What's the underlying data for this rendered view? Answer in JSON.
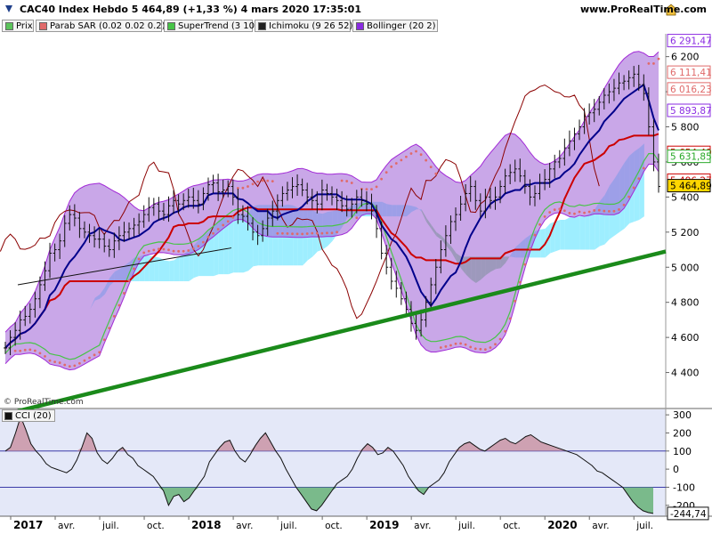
{
  "header": {
    "title": "CAC40 Index Hebdo 5 464,89 (+1,33 %) 4 mars 2020 17:35:01",
    "site": "www.ProRealTime.com"
  },
  "legend": [
    {
      "label": "Prix",
      "color": "#5bc45b"
    },
    {
      "label": "Parab SAR (0.02 0.02 0.2)",
      "color": "#e06a6a"
    },
    {
      "label": "SuperTrend (3 10)",
      "color": "#47c447"
    },
    {
      "label": "Ichimoku (9 26 52)",
      "color": "#202020"
    },
    {
      "label": "Bollinger (20 2)",
      "color": "#8a2be2"
    }
  ],
  "copyright": "© ProRealTime.com",
  "cci_legend": "CCI (20)",
  "colors": {
    "bollinger_fill": "#9c5fd6",
    "bollinger_line": "#a22ad7",
    "kumo_bull": "#7ee8ff",
    "kumo_bear": "#7dd67d",
    "tenkan": "#00008b",
    "kijun": "#cc0000",
    "chikou": "#8b0000",
    "trendline": "#1a8a1a",
    "cci_panel": "#e4e8f8"
  },
  "chart_data": [
    {
      "type": "line",
      "title": "CAC40 Index Hebdo 5 464,89 (+1,33 %) 4 mars 2020 17:35:01",
      "xlabel": "",
      "ylabel": "",
      "x_ticks": [
        "2017",
        "avr.",
        "juil.",
        "oct.",
        "2018",
        "avr.",
        "juil.",
        "oct.",
        "2019",
        "avr.",
        "juil.",
        "oct.",
        "2020",
        "avr.",
        "juil."
      ],
      "y_ticks": [
        "4 400",
        "4 600",
        "4 800",
        "5 000",
        "5 200",
        "5 400",
        "5 600",
        "5 800",
        "6 000",
        "6 200"
      ],
      "ylim": [
        4200,
        6330
      ],
      "price_labels": [
        {
          "text": "6 291,47",
          "value": 6291.47,
          "color": "#8a2be2"
        },
        {
          "text": "6 111,41",
          "value": 6111.41,
          "color": "#e06a6a"
        },
        {
          "text": "6 016,23",
          "value": 6016.23,
          "color": "#e06a6a"
        },
        {
          "text": "5 893,87",
          "value": 5893.87,
          "color": "#8a2be2"
        },
        {
          "text": "5 654,49",
          "value": 5654.49,
          "color": "#cc0000"
        },
        {
          "text": "5 631,85",
          "value": 5631.85,
          "color": "#27a827"
        },
        {
          "text": "5 496,27",
          "value": 5496.27,
          "color": "#cc0000"
        },
        {
          "text": "5 464,89",
          "value": 5464.89,
          "color": "#000000",
          "highlight": "#ffd700"
        }
      ],
      "series": [
        {
          "name": "Prix",
          "values": [
            4540,
            4600,
            4640,
            4700,
            4720,
            4760,
            4820,
            4900,
            4980,
            5080,
            5100,
            5150,
            5250,
            5300,
            5280,
            5220,
            5200,
            5180,
            5160,
            5160,
            5120,
            5100,
            5150,
            5180,
            5200,
            5220,
            5240,
            5260,
            5300,
            5340,
            5360,
            5320,
            5300,
            5350,
            5380,
            5360,
            5380,
            5400,
            5380,
            5360,
            5420,
            5470,
            5480,
            5430,
            5440,
            5460,
            5400,
            5300,
            5290,
            5250,
            5200,
            5180,
            5220,
            5280,
            5320,
            5380,
            5420,
            5440,
            5460,
            5470,
            5440,
            5400,
            5380,
            5360,
            5440,
            5420,
            5400,
            5380,
            5350,
            5330,
            5360,
            5400,
            5380,
            5360,
            5320,
            5220,
            5080,
            5000,
            4920,
            4880,
            4820,
            4760,
            4680,
            4640,
            4700,
            4800,
            4900,
            5000,
            5100,
            5180,
            5260,
            5300,
            5360,
            5420,
            5460,
            5380,
            5320,
            5400,
            5380,
            5400,
            5460,
            5520,
            5540,
            5560,
            5520,
            5460,
            5400,
            5420,
            5480,
            5500,
            5560,
            5600,
            5620,
            5680,
            5720,
            5760,
            5800,
            5860,
            5880,
            5900,
            5940,
            5980,
            6000,
            6020,
            6050,
            6060,
            6080,
            6100,
            6040,
            5990,
            5800,
            5600,
            5460
          ]
        },
        {
          "name": "Parab SAR",
          "values": []
        },
        {
          "name": "SuperTrend",
          "values": []
        },
        {
          "name": "Ichimoku",
          "values": []
        },
        {
          "name": "Bollinger",
          "values": []
        }
      ]
    },
    {
      "type": "area",
      "title": "CCI (20)",
      "y_ticks": [
        "-200",
        "-100",
        "0",
        "100",
        "200",
        "300"
      ],
      "ylim": [
        -260,
        330
      ],
      "levels": [
        100,
        -100
      ],
      "last_value_label": "-244,74",
      "values": [
        100,
        120,
        200,
        290,
        220,
        140,
        100,
        70,
        30,
        10,
        0,
        -10,
        -20,
        0,
        50,
        120,
        200,
        170,
        90,
        50,
        30,
        60,
        100,
        120,
        80,
        60,
        20,
        0,
        -20,
        -40,
        -80,
        -120,
        -200,
        -150,
        -140,
        -180,
        -160,
        -120,
        -80,
        -40,
        40,
        80,
        120,
        150,
        160,
        100,
        60,
        40,
        80,
        130,
        170,
        200,
        150,
        100,
        60,
        0,
        -50,
        -100,
        -140,
        -180,
        -220,
        -230,
        -200,
        -160,
        -120,
        -80,
        -60,
        -40,
        0,
        60,
        110,
        140,
        120,
        80,
        90,
        120,
        100,
        60,
        20,
        -40,
        -80,
        -120,
        -140,
        -100,
        -80,
        -60,
        -20,
        40,
        80,
        120,
        140,
        150,
        130,
        110,
        100,
        120,
        140,
        160,
        170,
        150,
        140,
        160,
        180,
        190,
        170,
        150,
        140,
        130,
        120,
        110,
        100,
        90,
        80,
        60,
        40,
        20,
        -10,
        -20,
        -40,
        -60,
        -80,
        -100,
        -140,
        -180,
        -210,
        -230,
        -240,
        -244.74
      ]
    }
  ]
}
